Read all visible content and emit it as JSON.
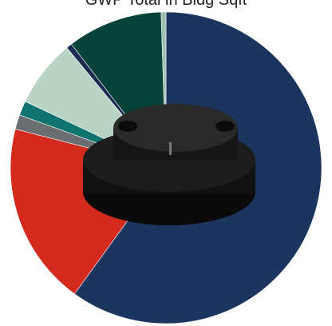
{
  "chart_data": {
    "type": "pie",
    "title": "GWP Total in Bldg Sqft",
    "values": [
      60,
      19,
      1.5,
      1.5,
      7,
      0.6,
      9.9,
      0.5
    ],
    "colors": [
      "#1c355e",
      "#d42a1e",
      "#6b6e70",
      "#0f7370",
      "#b9d3c4",
      "#1c2a52",
      "#05423a",
      "#9fbfb2"
    ]
  }
}
